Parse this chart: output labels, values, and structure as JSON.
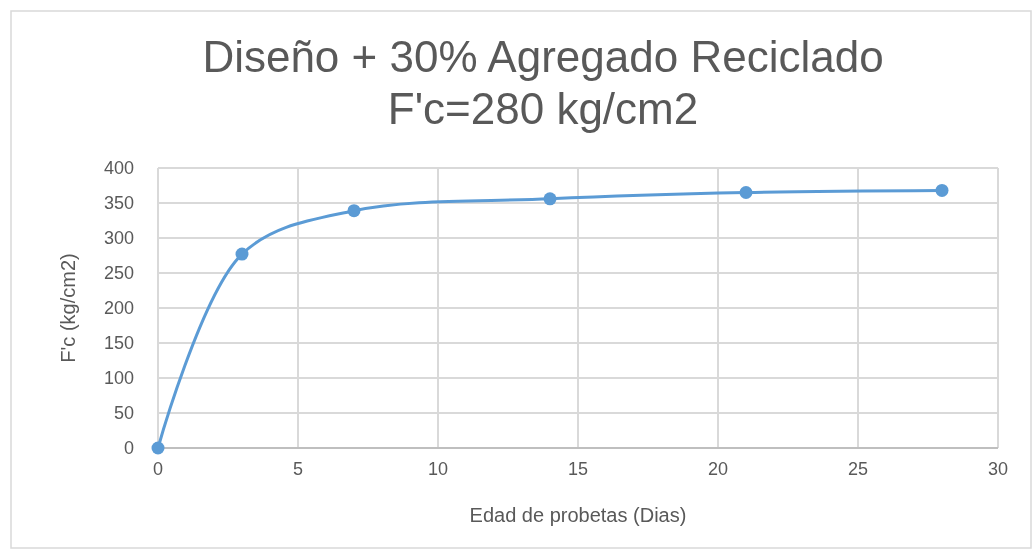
{
  "chart_data": {
    "type": "line",
    "title": "Diseño + 30% Agregado Reciclado\nF'c=280 kg/cm2",
    "xlabel": "Edad de probetas (Dias)",
    "ylabel": "F'c (kg/cm2)",
    "x": [
      0,
      3,
      7,
      14,
      21,
      28
    ],
    "series": [
      {
        "color": "#5b9bd5",
        "values": [
          0,
          277,
          339,
          356,
          365,
          368
        ]
      }
    ],
    "xlim": [
      0,
      30
    ],
    "xticks": [
      0,
      5,
      10,
      15,
      20,
      25,
      30
    ],
    "ylim": [
      0,
      400
    ],
    "yticks": [
      0,
      50,
      100,
      150,
      200,
      250,
      300,
      350,
      400
    ],
    "grid": true,
    "marker": "circle",
    "line_style": "solid"
  }
}
